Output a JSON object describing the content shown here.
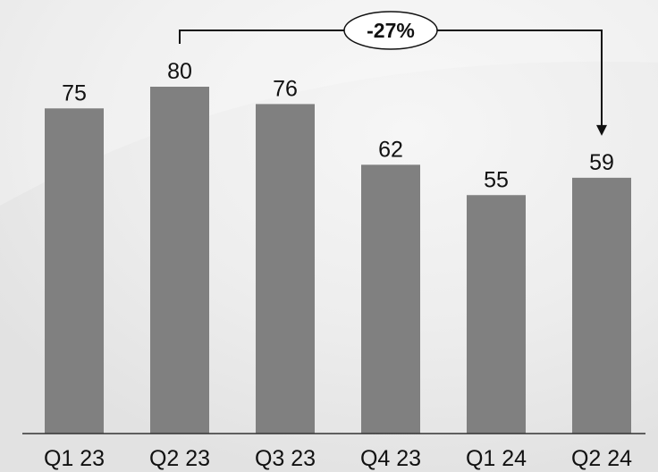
{
  "chart_data": {
    "type": "bar",
    "categories": [
      "Q1 23",
      "Q2 23",
      "Q3 23",
      "Q4 23",
      "Q1 24",
      "Q2 24"
    ],
    "values": [
      75,
      80,
      76,
      62,
      55,
      59
    ],
    "ylim": [
      0,
      80
    ],
    "grid": false,
    "bar_color": "#808080",
    "annotation": {
      "text": "-27%",
      "from_category": "Q2 23",
      "to_category": "Q2 24"
    }
  }
}
